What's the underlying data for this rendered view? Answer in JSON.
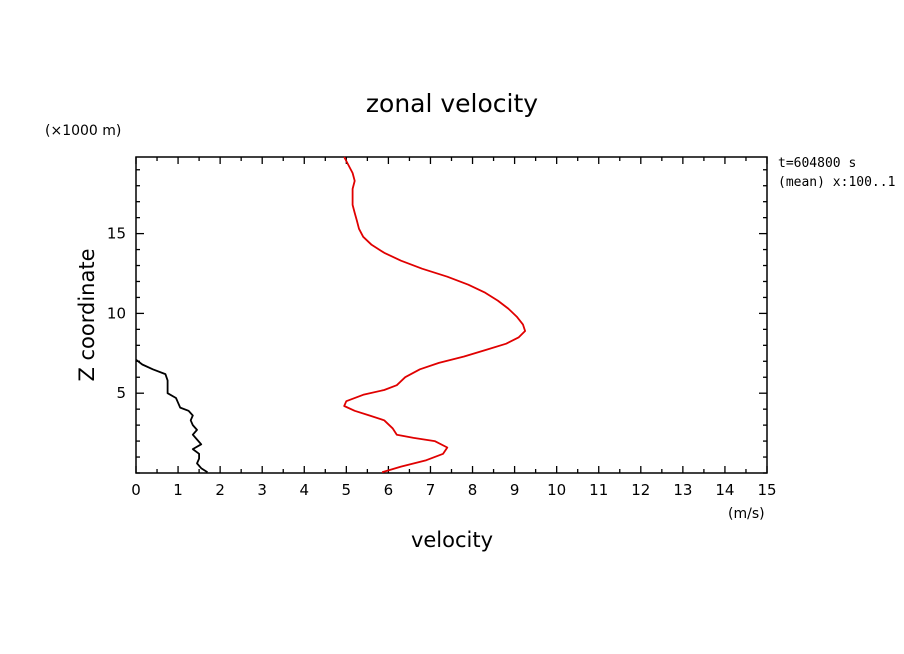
{
  "chart_data": {
    "type": "line",
    "title": "zonal velocity",
    "xlabel": "velocity",
    "ylabel": "Z coordinate",
    "x_unit": "(m/s)",
    "y_unit": "(×1000 m)",
    "annotations": [
      "t=604800 s",
      "(mean) x:100..1"
    ],
    "xlim": [
      0,
      15
    ],
    "ylim": [
      0,
      19.8
    ],
    "x_ticks": [
      "0",
      "1",
      "2",
      "3",
      "4",
      "5",
      "6",
      "7",
      "8",
      "9",
      "10",
      "11",
      "12",
      "13",
      "14",
      "15"
    ],
    "y_ticks": [
      "5",
      "10",
      "15"
    ],
    "grid": false,
    "series": [
      {
        "color": "#e00000",
        "points": [
          [
            4.95,
            19.8
          ],
          [
            5.05,
            19.3
          ],
          [
            5.15,
            18.8
          ],
          [
            5.2,
            18.3
          ],
          [
            5.15,
            17.8
          ],
          [
            5.15,
            17.3
          ],
          [
            5.15,
            16.8
          ],
          [
            5.2,
            16.3
          ],
          [
            5.25,
            15.8
          ],
          [
            5.3,
            15.3
          ],
          [
            5.4,
            14.8
          ],
          [
            5.6,
            14.3
          ],
          [
            5.9,
            13.8
          ],
          [
            6.3,
            13.3
          ],
          [
            6.8,
            12.8
          ],
          [
            7.4,
            12.3
          ],
          [
            7.9,
            11.8
          ],
          [
            8.3,
            11.3
          ],
          [
            8.6,
            10.8
          ],
          [
            8.85,
            10.3
          ],
          [
            9.05,
            9.8
          ],
          [
            9.2,
            9.3
          ],
          [
            9.25,
            8.9
          ],
          [
            9.1,
            8.5
          ],
          [
            8.8,
            8.1
          ],
          [
            8.3,
            7.7
          ],
          [
            7.8,
            7.3
          ],
          [
            7.2,
            6.9
          ],
          [
            6.75,
            6.5
          ],
          [
            6.4,
            6.0
          ],
          [
            6.2,
            5.5
          ],
          [
            5.9,
            5.2
          ],
          [
            5.4,
            4.9
          ],
          [
            5.0,
            4.5
          ],
          [
            4.95,
            4.2
          ],
          [
            5.2,
            3.9
          ],
          [
            5.55,
            3.6
          ],
          [
            5.9,
            3.3
          ],
          [
            6.1,
            2.8
          ],
          [
            6.2,
            2.4
          ],
          [
            6.6,
            2.2
          ],
          [
            7.1,
            2.0
          ],
          [
            7.4,
            1.6
          ],
          [
            7.3,
            1.2
          ],
          [
            6.9,
            0.8
          ],
          [
            6.3,
            0.4
          ],
          [
            5.85,
            0.05
          ]
        ]
      },
      {
        "color": "#000000",
        "points": [
          [
            0.0,
            7.1
          ],
          [
            0.15,
            6.8
          ],
          [
            0.4,
            6.5
          ],
          [
            0.7,
            6.2
          ],
          [
            0.75,
            5.8
          ],
          [
            0.75,
            5.3
          ],
          [
            0.75,
            5.0
          ],
          [
            0.95,
            4.7
          ],
          [
            1.0,
            4.4
          ],
          [
            1.05,
            4.1
          ],
          [
            1.25,
            3.9
          ],
          [
            1.35,
            3.6
          ],
          [
            1.3,
            3.3
          ],
          [
            1.35,
            3.0
          ],
          [
            1.45,
            2.7
          ],
          [
            1.35,
            2.4
          ],
          [
            1.45,
            2.1
          ],
          [
            1.55,
            1.8
          ],
          [
            1.35,
            1.5
          ],
          [
            1.5,
            1.2
          ],
          [
            1.5,
            0.9
          ],
          [
            1.45,
            0.6
          ],
          [
            1.55,
            0.3
          ],
          [
            1.7,
            0.05
          ]
        ]
      }
    ]
  }
}
